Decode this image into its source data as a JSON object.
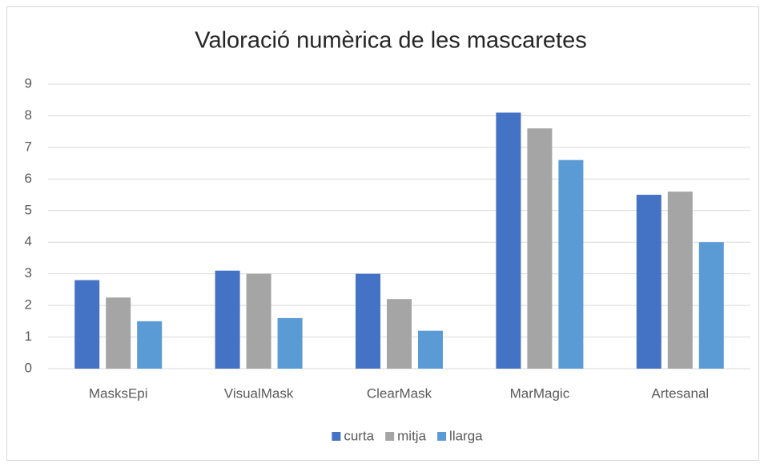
{
  "chart_data": {
    "type": "bar",
    "title": "Valoració numèrica de les mascaretes",
    "categories": [
      "MasksEpi",
      "VisualMask",
      "ClearMask",
      "MarMagic",
      "Artesanal"
    ],
    "series": [
      {
        "name": "curta",
        "color": "#4472c4",
        "values": [
          2.8,
          3.1,
          3.0,
          8.1,
          5.5
        ]
      },
      {
        "name": "mitja",
        "color": "#a5a5a5",
        "values": [
          2.25,
          3.0,
          2.2,
          7.6,
          5.6
        ]
      },
      {
        "name": "llarga",
        "color": "#5b9bd5",
        "values": [
          1.5,
          1.6,
          1.2,
          6.6,
          4.0
        ]
      }
    ],
    "ylim": [
      0,
      9
    ],
    "yticks": [
      0,
      1,
      2,
      3,
      4,
      5,
      6,
      7,
      8,
      9
    ],
    "grid": true,
    "legend": "bottom"
  }
}
